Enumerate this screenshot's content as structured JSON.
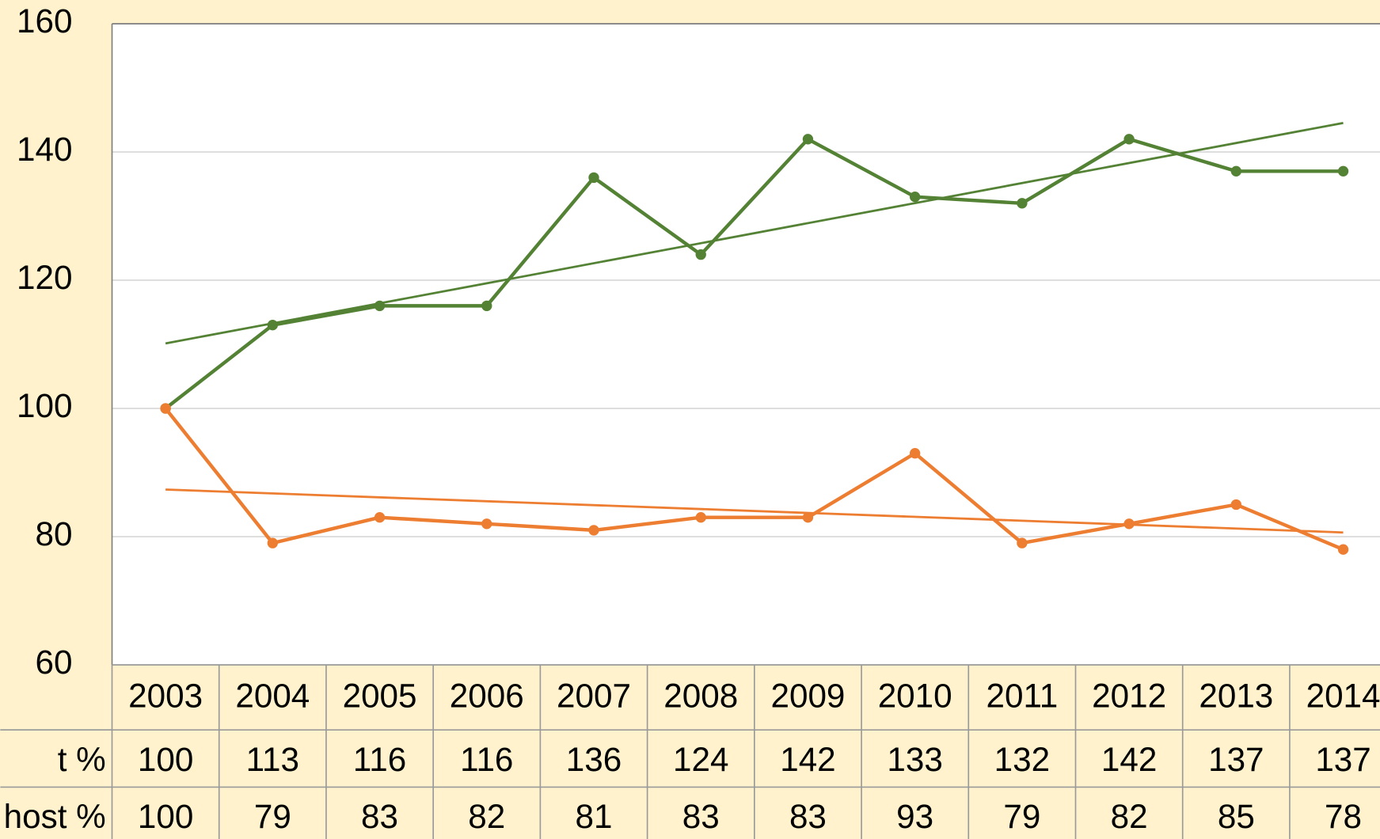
{
  "chart_data": {
    "type": "line",
    "categories": [
      "2003",
      "2004",
      "2005",
      "2006",
      "2007",
      "2008",
      "2009",
      "2010",
      "2011",
      "2012",
      "2013",
      "2014"
    ],
    "series": [
      {
        "name": "t %",
        "color": "#548235",
        "values": [
          100,
          113,
          116,
          116,
          136,
          124,
          142,
          133,
          132,
          142,
          137,
          137
        ]
      },
      {
        "name": "host %",
        "color": "#ed7d31",
        "values": [
          100,
          79,
          83,
          82,
          81,
          83,
          83,
          93,
          79,
          82,
          85,
          78
        ]
      }
    ],
    "ylim": [
      60,
      160
    ],
    "yticks": [
      60,
      80,
      100,
      120,
      140,
      160
    ],
    "grid": true,
    "trendline": true,
    "data_table": true
  }
}
